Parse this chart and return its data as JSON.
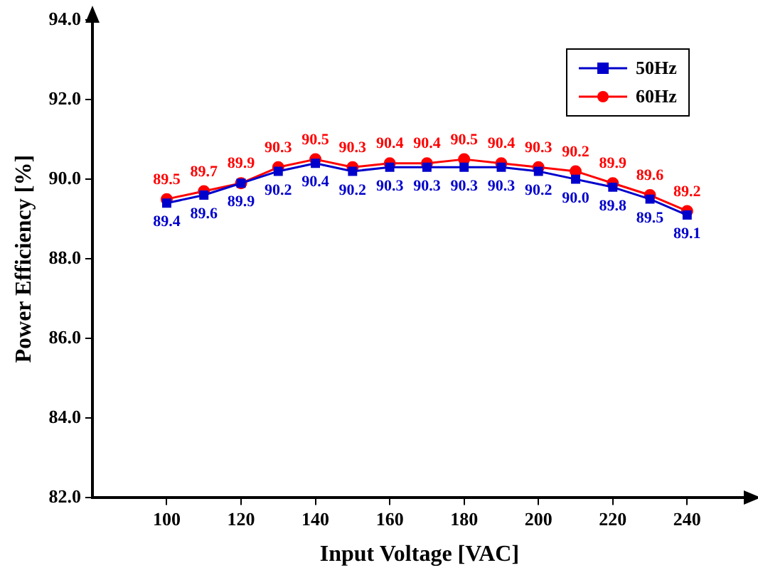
{
  "chart_data": {
    "type": "line",
    "xlabel": "Input Voltage [VAC]",
    "ylabel": "Power Efficiency [%]",
    "x": [
      100,
      110,
      120,
      130,
      140,
      150,
      160,
      170,
      180,
      190,
      200,
      210,
      220,
      230,
      240
    ],
    "series": [
      {
        "name": "50Hz",
        "color": "#0000cc",
        "marker": "square",
        "values": [
          89.4,
          89.6,
          89.9,
          90.2,
          90.4,
          90.2,
          90.3,
          90.3,
          90.3,
          90.3,
          90.2,
          90.0,
          89.8,
          89.5,
          89.1
        ],
        "value_labels": [
          "89.4",
          "89.6",
          "89.9",
          "90.2",
          "90.4",
          "90.2",
          "90.3",
          "90.3",
          "90.3",
          "90.3",
          "90.2",
          "90.0",
          "89.8",
          "89.5",
          "89.1"
        ]
      },
      {
        "name": "60Hz",
        "color": "#ff0000",
        "marker": "circle",
        "values": [
          89.5,
          89.7,
          89.9,
          90.3,
          90.5,
          90.3,
          90.4,
          90.4,
          90.5,
          90.4,
          90.3,
          90.2,
          89.9,
          89.6,
          89.2
        ],
        "value_labels": [
          "89.5",
          "89.7",
          "89.9",
          "90.3",
          "90.5",
          "90.3",
          "90.4",
          "90.4",
          "90.5",
          "90.4",
          "90.3",
          "90.2",
          "89.9",
          "89.6",
          "89.2"
        ]
      }
    ],
    "xlim": [
      80,
      256
    ],
    "xticks": [
      100,
      120,
      140,
      160,
      180,
      200,
      220,
      240
    ],
    "ylim": [
      82,
      94
    ],
    "yticks": [
      {
        "value": 82,
        "label": "82.0"
      },
      {
        "value": 84,
        "label": "84.0"
      },
      {
        "value": 86,
        "label": "86.0"
      },
      {
        "value": 88,
        "label": "88.0"
      },
      {
        "value": 90,
        "label": "90.0"
      },
      {
        "value": 92,
        "label": "92.0"
      },
      {
        "value": 94,
        "label": "94.0"
      }
    ],
    "grid": false,
    "legend": "top right"
  }
}
